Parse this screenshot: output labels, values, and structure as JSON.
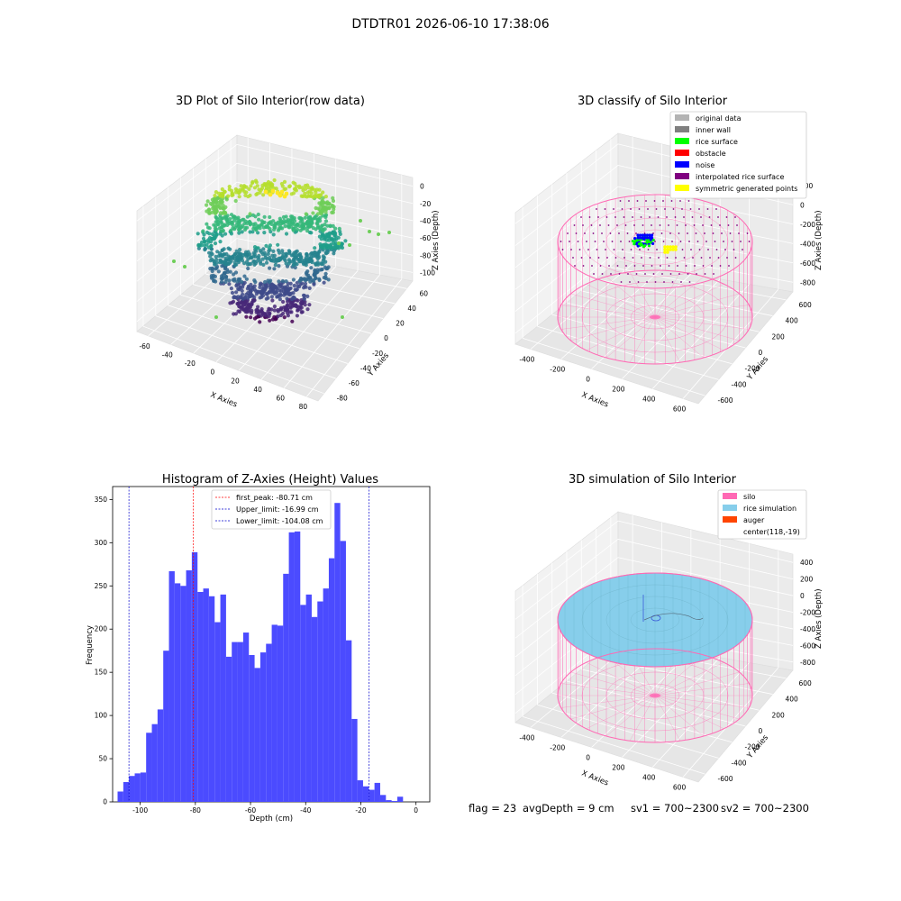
{
  "suptitle": "DTDTR01 2026-06-10 17:38:06",
  "charts": {
    "raw": {
      "title": "3D Plot of Silo Interior(row data)",
      "xlabel": "X Axies",
      "ylabel": "Y Axies",
      "zlabel": "Z Axies (Depth)",
      "xticks": [
        "-60",
        "-40",
        "-20",
        "0",
        "20",
        "40",
        "60",
        "80"
      ],
      "yticks": [
        "60",
        "40",
        "20",
        "0",
        "-20",
        "-40",
        "-60",
        "-80"
      ],
      "zticks": [
        "0",
        "-20",
        "-40",
        "-60",
        "-80",
        "-100"
      ]
    },
    "classify": {
      "title": "3D classify of Silo Interior",
      "xlabel": "X Axies",
      "ylabel": "Y Axies",
      "zlabel": "Z Axies (Depth)",
      "xticks": [
        "-400",
        "-200",
        "0",
        "200",
        "400",
        "600"
      ],
      "yticks": [
        "600",
        "400",
        "200",
        "0",
        "-200",
        "-400",
        "-600"
      ],
      "zticks": [
        "200",
        "0",
        "-200",
        "-400",
        "-600",
        "-800"
      ],
      "legend": [
        {
          "label": "original data",
          "color": "#b3b3b3"
        },
        {
          "label": "inner wall",
          "color": "#808080"
        },
        {
          "label": "rice surface",
          "color": "#00ff00"
        },
        {
          "label": "obstacle",
          "color": "#ff0000"
        },
        {
          "label": "noise",
          "color": "#0000ff"
        },
        {
          "label": "interpolated rice surface",
          "color": "#800080"
        },
        {
          "label": "symmetric generated points",
          "color": "#ffff00"
        }
      ]
    },
    "hist": {
      "title": "Histogram of Z-Axies (Height) Values",
      "xlabel": "Depth (cm)",
      "ylabel": "Frequency",
      "xticks": [
        "-100",
        "-80",
        "-60",
        "-40",
        "-20",
        "0"
      ],
      "yticks": [
        "0",
        "50",
        "100",
        "150",
        "200",
        "250",
        "300",
        "350"
      ],
      "legend": [
        {
          "label": "first_peak: -80.71 cm",
          "color": "#ff0000"
        },
        {
          "label": "Upper_limit: -16.99 cm",
          "color": "#0000cc"
        },
        {
          "label": "Lower_limit: -104.08 cm",
          "color": "#0000cc"
        }
      ]
    },
    "sim": {
      "title": "3D simulation of Silo Interior",
      "xlabel": "X Axies",
      "ylabel": "Y Axies",
      "zlabel": "Z Axies (Depth)",
      "xticks": [
        "-400",
        "-200",
        "0",
        "200",
        "400",
        "600"
      ],
      "yticks": [
        "600",
        "400",
        "200",
        "0",
        "-200",
        "-400",
        "-600"
      ],
      "zticks": [
        "400",
        "200",
        "0",
        "-200",
        "-400",
        "-600",
        "-800"
      ],
      "legend": [
        {
          "label": "silo",
          "color": "#ff69b4"
        },
        {
          "label": "rice simulation",
          "color": "#87ceeb"
        },
        {
          "label": "auger",
          "color": "#ff4500"
        },
        {
          "label": "center(118,-19)",
          "color": ""
        }
      ]
    }
  },
  "stats": {
    "flag": "flag = 23",
    "avg_depth": "avgDepth = 9 cm",
    "sv1": "sv1 = 700~2300",
    "sv2": "sv2 = 700~2300"
  },
  "chart_data": [
    {
      "type": "bar",
      "title": "Histogram of Z-Axies (Height) Values",
      "xlabel": "Depth (cm)",
      "ylabel": "Frequency",
      "bin_width": 2.07,
      "x_start": -108.2,
      "xlim": [
        -110,
        5
      ],
      "ylim": [
        0,
        365
      ],
      "values": [
        12,
        23,
        30,
        33,
        34,
        80,
        90,
        107,
        175,
        267,
        253,
        250,
        268,
        289,
        243,
        247,
        238,
        208,
        240,
        168,
        185,
        185,
        196,
        170,
        155,
        173,
        183,
        205,
        204,
        264,
        312,
        313,
        228,
        240,
        214,
        232,
        247,
        282,
        346,
        302,
        187,
        96,
        25,
        18,
        14,
        22,
        8,
        2,
        1,
        6
      ],
      "lines": [
        {
          "label": "first_peak: -80.71 cm",
          "x": -80.71,
          "color": "#ff0000"
        },
        {
          "label": "Upper_limit: -16.99 cm",
          "x": -16.99,
          "color": "#0000cc"
        },
        {
          "label": "Lower_limit: -104.08 cm",
          "x": -104.08,
          "color": "#0000cc"
        }
      ],
      "bar_color": "#4b4bff"
    }
  ]
}
